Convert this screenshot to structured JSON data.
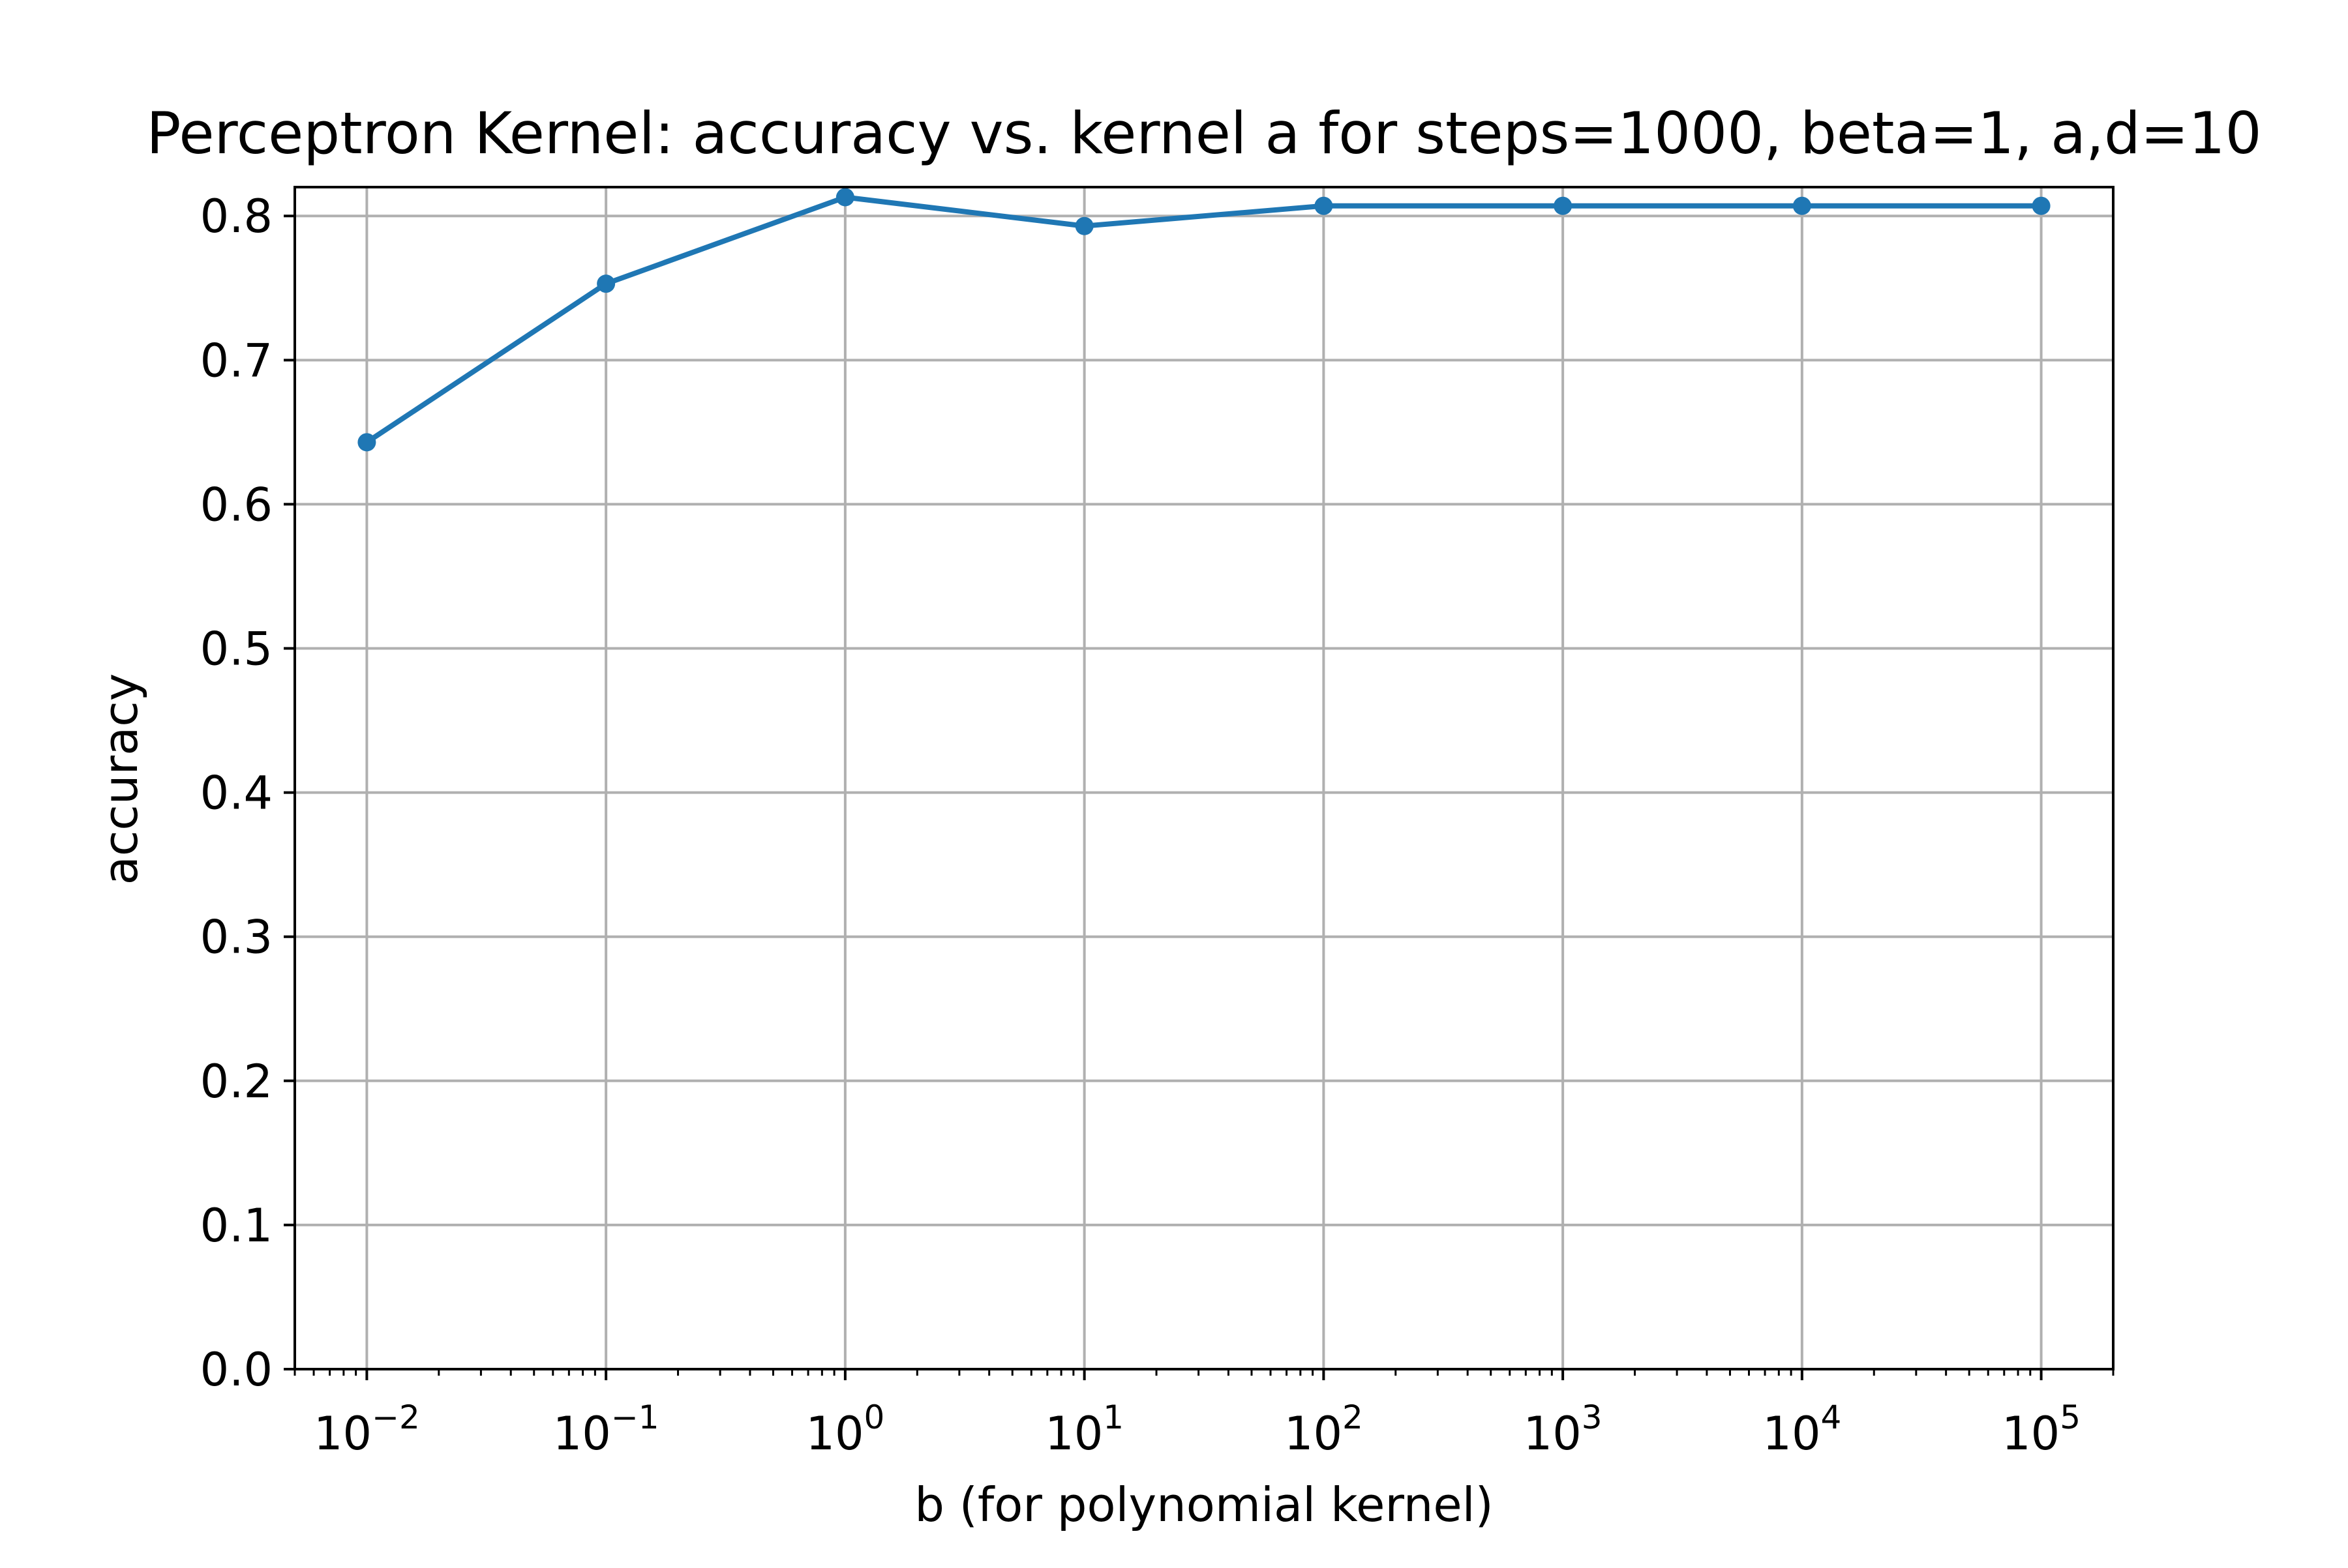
{
  "chart_data": {
    "type": "line",
    "title": "Perceptron Kernel: accuracy vs. kernel a for steps=1000, beta=1, a,d=10",
    "xlabel": "b (for polynomial kernel)",
    "ylabel": "accuracy",
    "x_scale": "log",
    "xlim": [
      0.005,
      200000
    ],
    "ylim": [
      0.0,
      0.82
    ],
    "grid": true,
    "x_ticks": [
      {
        "value": 0.01,
        "base": "10",
        "exp": "−2"
      },
      {
        "value": 0.1,
        "base": "10",
        "exp": "−1"
      },
      {
        "value": 1,
        "base": "10",
        "exp": "0"
      },
      {
        "value": 10,
        "base": "10",
        "exp": "1"
      },
      {
        "value": 100,
        "base": "10",
        "exp": "2"
      },
      {
        "value": 1000,
        "base": "10",
        "exp": "3"
      },
      {
        "value": 10000,
        "base": "10",
        "exp": "4"
      },
      {
        "value": 100000,
        "base": "10",
        "exp": "5"
      }
    ],
    "y_ticks": [
      "0.0",
      "0.1",
      "0.2",
      "0.3",
      "0.4",
      "0.5",
      "0.6",
      "0.7",
      "0.8"
    ],
    "series": [
      {
        "color": "#1f77b4",
        "x": [
          0.01,
          0.1,
          1,
          10,
          100,
          1000,
          10000,
          100000
        ],
        "y": [
          0.643,
          0.753,
          0.813,
          0.793,
          0.807,
          0.807,
          0.807,
          0.807
        ]
      }
    ]
  }
}
